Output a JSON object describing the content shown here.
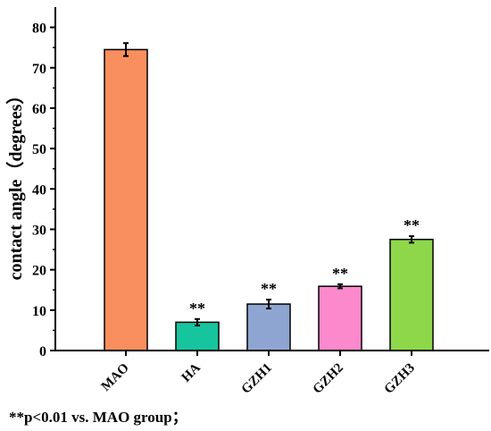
{
  "chart_data": {
    "type": "bar",
    "categories": [
      "MAO",
      "HA",
      "GZH1",
      "GZH2",
      "GZH3"
    ],
    "values": [
      74.5,
      7.0,
      11.5,
      15.9,
      27.5
    ],
    "errors": [
      1.6,
      0.8,
      1.1,
      0.5,
      0.8
    ],
    "significance": [
      "",
      "**",
      "**",
      "**",
      "**"
    ],
    "colors": [
      "#f98f5f",
      "#16c49e",
      "#8fa5d1",
      "#fb89cc",
      "#8ed74b"
    ],
    "ylabel": "contact angle（degrees）",
    "xlabel": "",
    "ylim": [
      0,
      85
    ],
    "yticks": [
      0,
      10,
      20,
      30,
      40,
      50,
      60,
      70,
      80
    ],
    "legend": null,
    "grid": false
  },
  "footnote": "**p<0.01 vs. MAO group；"
}
